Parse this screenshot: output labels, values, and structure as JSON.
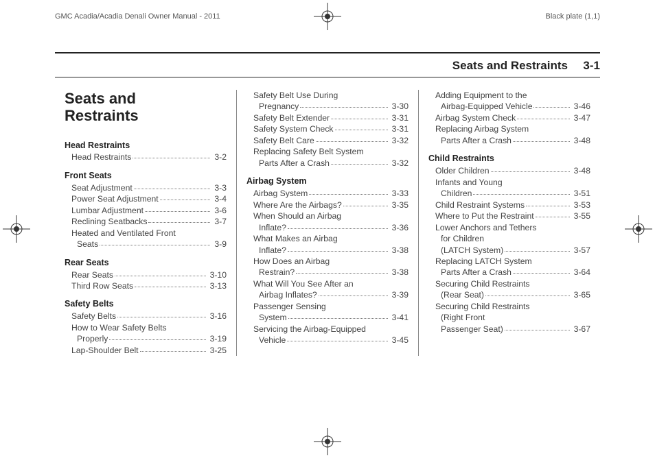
{
  "header": {
    "left": "GMC Acadia/Acadia Denali Owner Manual - 2011",
    "right": "Black plate (1,1)"
  },
  "sectionHeader": {
    "title": "Seats and Restraints",
    "num": "3-1"
  },
  "chapterTitle": "Seats and\nRestraints",
  "col1": [
    {
      "type": "head",
      "text": "Head Restraints"
    },
    {
      "type": "item",
      "label": "Head Restraints",
      "page": "3-2"
    },
    {
      "type": "head",
      "text": "Front Seats"
    },
    {
      "type": "item",
      "label": "Seat Adjustment",
      "page": "3-3"
    },
    {
      "type": "item",
      "label": "Power Seat Adjustment",
      "page": "3-4"
    },
    {
      "type": "item",
      "label": "Lumbar Adjustment",
      "page": "3-6"
    },
    {
      "type": "item",
      "label": "Reclining Seatbacks",
      "page": "3-7"
    },
    {
      "type": "wrap",
      "l1": "Heated and Ventilated Front",
      "l2": "Seats",
      "page": "3-9"
    },
    {
      "type": "head",
      "text": "Rear Seats"
    },
    {
      "type": "item",
      "label": "Rear Seats",
      "page": "3-10"
    },
    {
      "type": "item",
      "label": "Third Row Seats",
      "page": "3-13"
    },
    {
      "type": "head",
      "text": "Safety Belts"
    },
    {
      "type": "item",
      "label": "Safety Belts",
      "page": "3-16"
    },
    {
      "type": "wrap",
      "l1": "How to Wear Safety Belts",
      "l2": "Properly",
      "page": "3-19"
    },
    {
      "type": "item",
      "label": "Lap-Shoulder Belt",
      "page": "3-25"
    }
  ],
  "col2": [
    {
      "type": "wrap",
      "l1": "Safety Belt Use During",
      "l2": "Pregnancy",
      "page": "3-30"
    },
    {
      "type": "item",
      "label": "Safety Belt Extender",
      "page": "3-31"
    },
    {
      "type": "item",
      "label": "Safety System Check",
      "page": "3-31"
    },
    {
      "type": "item",
      "label": "Safety Belt Care",
      "page": "3-32"
    },
    {
      "type": "wrap",
      "l1": "Replacing Safety Belt System",
      "l2": "Parts After a Crash",
      "page": "3-32"
    },
    {
      "type": "head",
      "text": "Airbag System"
    },
    {
      "type": "item",
      "label": "Airbag System",
      "page": "3-33"
    },
    {
      "type": "item",
      "label": "Where Are the Airbags?",
      "page": "3-35"
    },
    {
      "type": "wrap",
      "l1": "When Should an Airbag",
      "l2": "Inflate?",
      "page": "3-36"
    },
    {
      "type": "wrap",
      "l1": "What Makes an Airbag",
      "l2": "Inflate?",
      "page": "3-38"
    },
    {
      "type": "wrap",
      "l1": "How Does an Airbag",
      "l2": "Restrain?",
      "page": "3-38"
    },
    {
      "type": "wrap",
      "l1": "What Will You See After an",
      "l2": "Airbag Inflates?",
      "page": "3-39"
    },
    {
      "type": "wrap",
      "l1": "Passenger Sensing",
      "l2": "System",
      "page": "3-41"
    },
    {
      "type": "wrap",
      "l1": "Servicing the Airbag-Equipped",
      "l2": "Vehicle",
      "page": "3-45"
    }
  ],
  "col3": [
    {
      "type": "wrap",
      "l1": "Adding Equipment to the",
      "l2": "Airbag-Equipped Vehicle",
      "page": "3-46"
    },
    {
      "type": "item",
      "label": "Airbag System Check",
      "page": "3-47"
    },
    {
      "type": "wrap",
      "l1": "Replacing Airbag System",
      "l2": "Parts After a Crash",
      "page": "3-48"
    },
    {
      "type": "head",
      "text": "Child Restraints"
    },
    {
      "type": "item",
      "label": "Older Children",
      "page": "3-48"
    },
    {
      "type": "wrap",
      "l1": "Infants and Young",
      "l2": "Children",
      "page": "3-51"
    },
    {
      "type": "item",
      "label": "Child Restraint Systems",
      "page": "3-53"
    },
    {
      "type": "item",
      "label": "Where to Put the Restraint",
      "page": "3-55"
    },
    {
      "type": "wrap3",
      "l1": "Lower Anchors and Tethers",
      "l2": "for Children",
      "l3": "(LATCH System)",
      "page": "3-57"
    },
    {
      "type": "wrap",
      "l1": "Replacing LATCH System",
      "l2": "Parts After a Crash",
      "page": "3-64"
    },
    {
      "type": "wrap",
      "l1": "Securing Child Restraints",
      "l2": "(Rear Seat)",
      "page": "3-65"
    },
    {
      "type": "wrap3",
      "l1": "Securing Child Restraints",
      "l2": "(Right Front",
      "l3": "Passenger Seat)",
      "page": "3-67"
    }
  ]
}
